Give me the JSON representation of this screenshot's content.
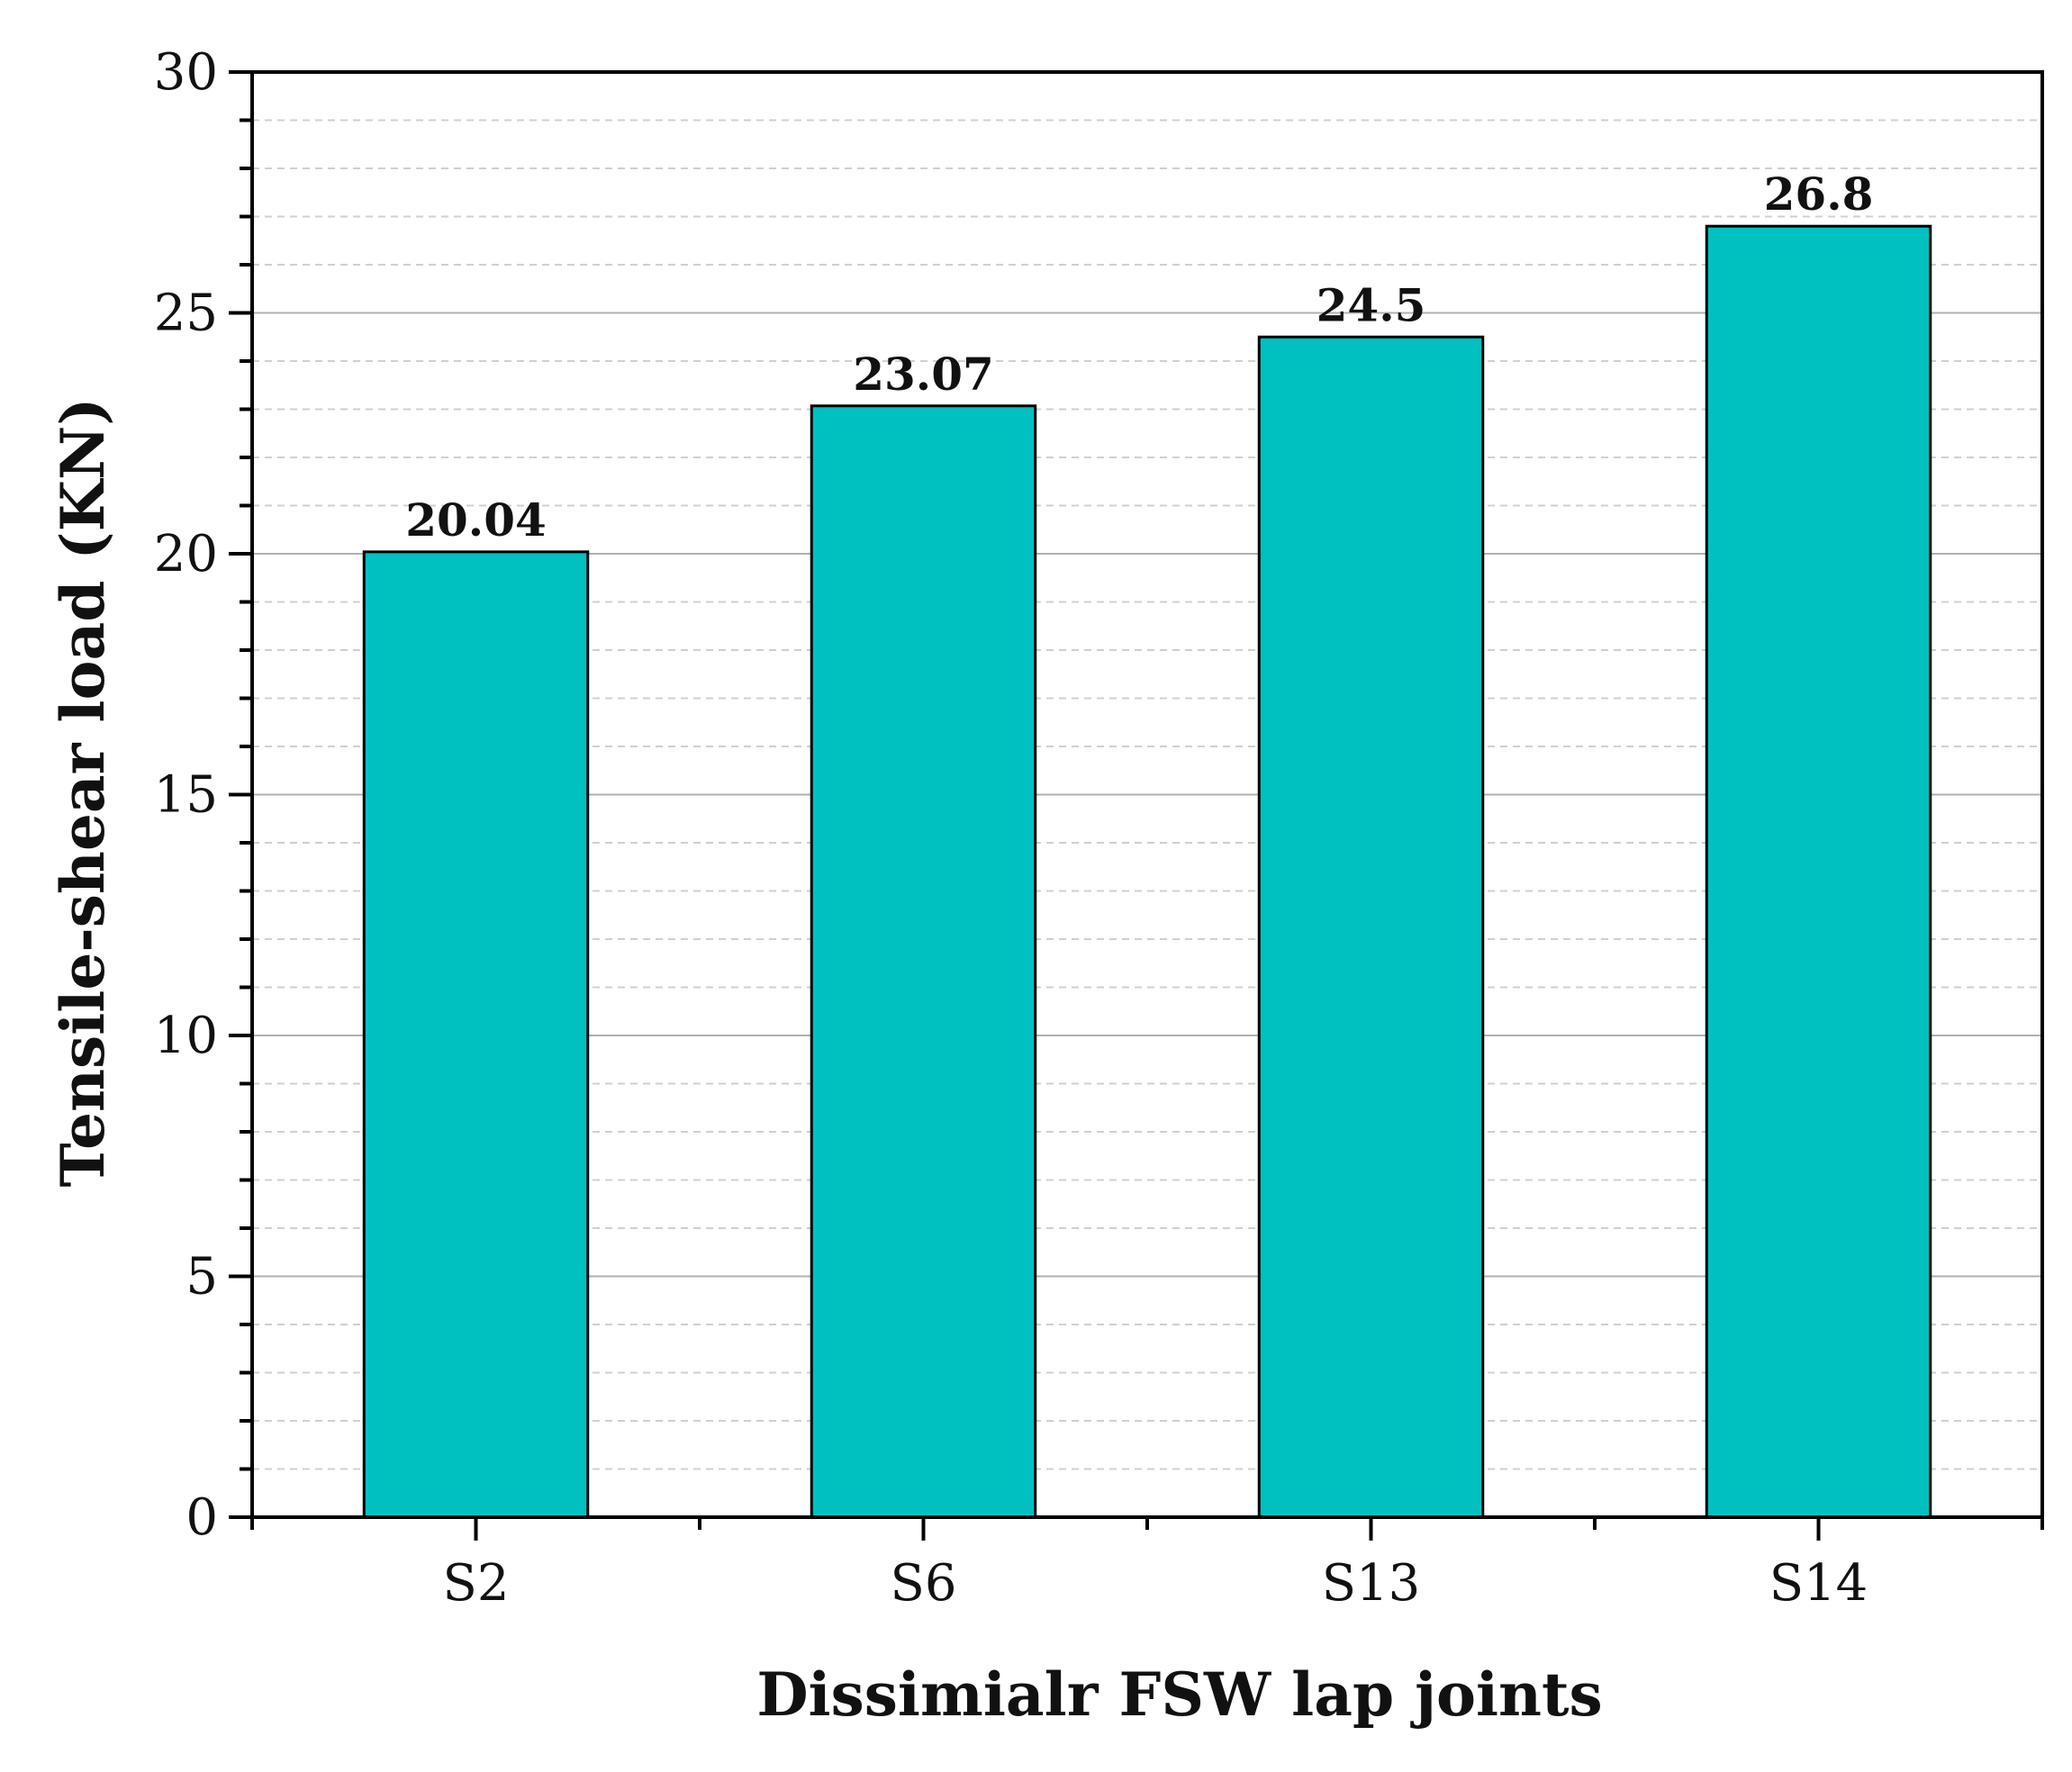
{
  "chart_data": {
    "type": "bar",
    "title": "",
    "xlabel": "Dissimialr FSW lap joints",
    "ylabel": "Tensile-shear load (KN)",
    "categories": [
      "S2",
      "S6",
      "S13",
      "S14"
    ],
    "values": [
      20.04,
      23.07,
      24.5,
      26.8
    ],
    "data_labels": [
      "20.04",
      "23.07",
      "24.5",
      "26.8"
    ],
    "ylim": [
      0,
      30
    ],
    "yticks": [
      0,
      5,
      10,
      15,
      20,
      25,
      30
    ],
    "grid": "major solid, minor dashed (horizontal)",
    "legend": "none",
    "colors": {
      "bar": "#00c0c0",
      "bar_edge": "#000000",
      "grid_major": "#b0b0b0",
      "grid_minor": "#d0d0d0"
    }
  }
}
